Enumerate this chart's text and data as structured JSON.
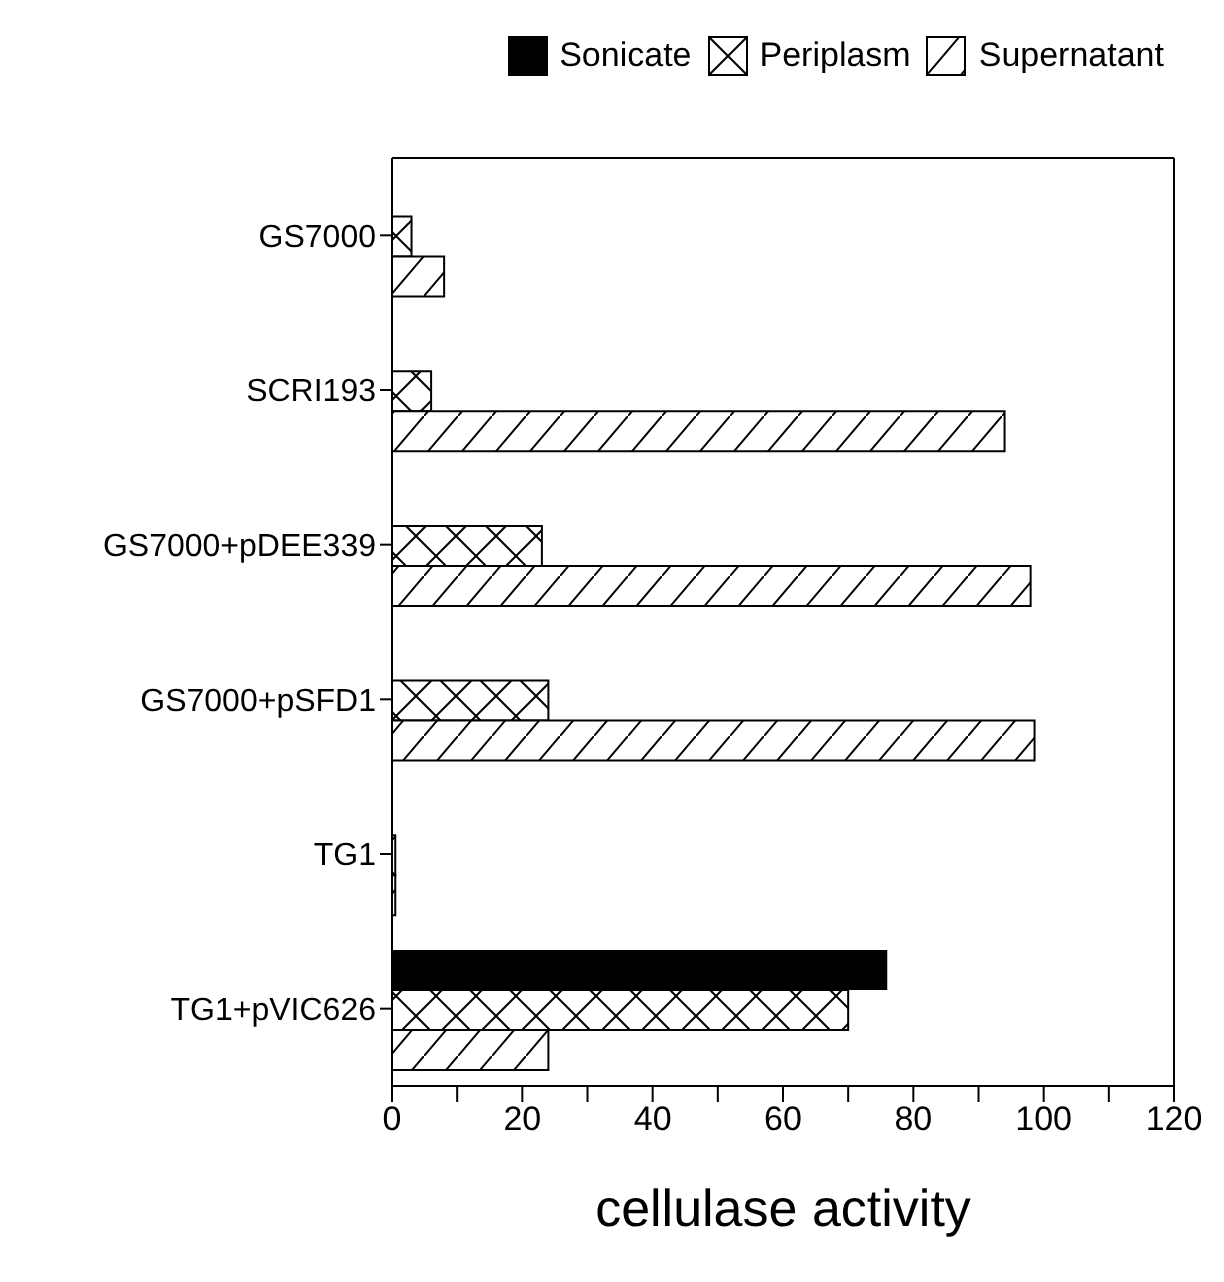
{
  "chart_data": {
    "type": "bar",
    "orientation": "horizontal",
    "xlabel": "cellulase activity",
    "categories": [
      "GS7000",
      "SCRI193",
      "GS7000+pDEE339",
      "GS7000+pSFD1",
      "TG1",
      "TG1+pVIC626"
    ],
    "series": [
      {
        "name": "Sonicate",
        "color": "#000000",
        "values": [
          null,
          null,
          null,
          null,
          null,
          76
        ]
      },
      {
        "name": "Periplasm",
        "color": "#000000",
        "values": [
          3,
          6,
          23,
          24,
          0.5,
          70
        ]
      },
      {
        "name": "Supernatant",
        "color": "#000000",
        "values": [
          8,
          94,
          98,
          98.6,
          0.5,
          24
        ]
      }
    ],
    "xlim": [
      0,
      120
    ],
    "xticks": [
      0,
      {
        "value": 10,
        "label": null
      },
      20,
      {
        "value": 30,
        "label": null
      },
      40,
      {
        "value": 50,
        "label": null
      },
      60,
      {
        "value": 70,
        "label": null
      },
      80,
      {
        "value": 90,
        "label": null
      },
      100,
      {
        "value": 110,
        "label": null
      },
      120
    ],
    "legend": "top right",
    "grid": false
  }
}
